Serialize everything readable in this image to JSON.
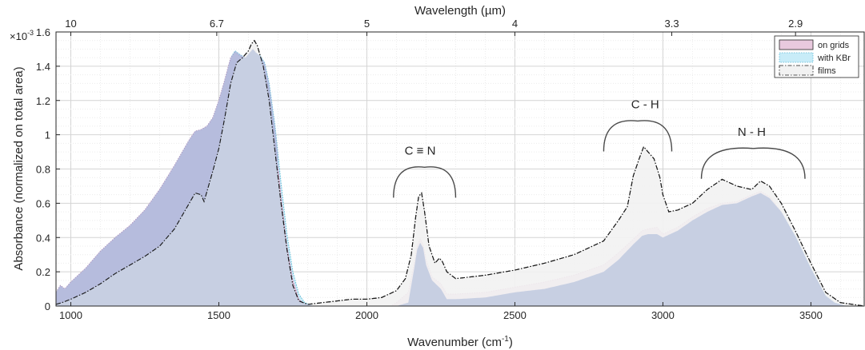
{
  "chart_data": {
    "type": "area",
    "xlabel": "Wavenumber (cm",
    "xlabel_sup": "-1",
    "xlabel_close": ")",
    "ylabel": "Absorbance (normalized on total area)",
    "top_xlabel": "Wavelength (µm)",
    "y_exponent_base": "×10",
    "y_exponent": "-3",
    "xlim": [
      950,
      3680
    ],
    "ylim": [
      0,
      1.6
    ],
    "x_ticks": [
      1000,
      1500,
      2000,
      2500,
      3000,
      3500
    ],
    "y_ticks": [
      0,
      0.2,
      0.4,
      0.6,
      0.8,
      1,
      1.2,
      1.4,
      1.6
    ],
    "y_tick_labels": [
      "0",
      "0.2",
      "0.4",
      "0.6",
      "0.8",
      "1",
      "1.2",
      "1.4",
      "1.6"
    ],
    "top_ticks": [
      {
        "label": "10",
        "wavenumber": 1000
      },
      {
        "label": "6.7",
        "wavenumber": 1493
      },
      {
        "label": "5",
        "wavenumber": 2000
      },
      {
        "label": "4",
        "wavenumber": 2500
      },
      {
        "label": "3.3",
        "wavenumber": 3030
      },
      {
        "label": "2.9",
        "wavenumber": 3448
      }
    ],
    "grid": true,
    "legend_position": "top-right",
    "annotations": [
      {
        "text": "C ≡ N",
        "x": 2180,
        "y": 1.22,
        "arc_from": 2090,
        "arc_to": 2300,
        "arc_top": 0.81
      },
      {
        "text": "C - H",
        "x": 2940,
        "y": 1.43,
        "arc_from": 2800,
        "arc_to": 3030,
        "arc_top": 1.08
      },
      {
        "text": "N - H",
        "x": 3300,
        "y": 1.21,
        "arc_from": 3130,
        "arc_to": 3480,
        "arc_top": 0.92
      }
    ],
    "series": [
      {
        "name": "with KBr",
        "fill": "#c8ecf8",
        "edge": "#5cb8d4",
        "points": [
          [
            950,
            0.08
          ],
          [
            965,
            0.12
          ],
          [
            980,
            0.1
          ],
          [
            1000,
            0.14
          ],
          [
            1050,
            0.22
          ],
          [
            1100,
            0.32
          ],
          [
            1150,
            0.4
          ],
          [
            1200,
            0.47
          ],
          [
            1250,
            0.56
          ],
          [
            1300,
            0.68
          ],
          [
            1350,
            0.82
          ],
          [
            1400,
            0.97
          ],
          [
            1420,
            1.02
          ],
          [
            1440,
            1.03
          ],
          [
            1460,
            1.05
          ],
          [
            1480,
            1.1
          ],
          [
            1500,
            1.2
          ],
          [
            1520,
            1.32
          ],
          [
            1540,
            1.45
          ],
          [
            1555,
            1.49
          ],
          [
            1570,
            1.47
          ],
          [
            1590,
            1.45
          ],
          [
            1605,
            1.48
          ],
          [
            1615,
            1.5
          ],
          [
            1625,
            1.48
          ],
          [
            1640,
            1.46
          ],
          [
            1655,
            1.42
          ],
          [
            1670,
            1.3
          ],
          [
            1690,
            1.05
          ],
          [
            1710,
            0.72
          ],
          [
            1730,
            0.42
          ],
          [
            1750,
            0.2
          ],
          [
            1770,
            0.07
          ],
          [
            1790,
            0.02
          ],
          [
            1820,
            0
          ],
          [
            2100,
            0
          ],
          [
            2140,
            0.02
          ],
          [
            2160,
            0.22
          ],
          [
            2170,
            0.33
          ],
          [
            2180,
            0.37
          ],
          [
            2190,
            0.34
          ],
          [
            2200,
            0.24
          ],
          [
            2220,
            0.15
          ],
          [
            2250,
            0.1
          ],
          [
            2270,
            0.04
          ],
          [
            2300,
            0.04
          ],
          [
            2400,
            0.05
          ],
          [
            2500,
            0.08
          ],
          [
            2600,
            0.1
          ],
          [
            2700,
            0.14
          ],
          [
            2800,
            0.2
          ],
          [
            2850,
            0.27
          ],
          [
            2900,
            0.36
          ],
          [
            2930,
            0.41
          ],
          [
            2950,
            0.42
          ],
          [
            2980,
            0.42
          ],
          [
            3000,
            0.4
          ],
          [
            3050,
            0.44
          ],
          [
            3100,
            0.5
          ],
          [
            3150,
            0.55
          ],
          [
            3200,
            0.59
          ],
          [
            3250,
            0.6
          ],
          [
            3300,
            0.64
          ],
          [
            3330,
            0.66
          ],
          [
            3360,
            0.63
          ],
          [
            3400,
            0.55
          ],
          [
            3450,
            0.4
          ],
          [
            3500,
            0.22
          ],
          [
            3550,
            0.06
          ],
          [
            3580,
            0.02
          ],
          [
            3620,
            0
          ],
          [
            3680,
            0
          ]
        ]
      },
      {
        "name": "on grids",
        "fill": "#e8c9de",
        "edge": "#c27fae",
        "points": [
          [
            950,
            0.08
          ],
          [
            965,
            0.12
          ],
          [
            980,
            0.1
          ],
          [
            1000,
            0.14
          ],
          [
            1050,
            0.22
          ],
          [
            1100,
            0.32
          ],
          [
            1150,
            0.4
          ],
          [
            1200,
            0.47
          ],
          [
            1250,
            0.56
          ],
          [
            1300,
            0.68
          ],
          [
            1350,
            0.82
          ],
          [
            1400,
            0.97
          ],
          [
            1420,
            1.02
          ],
          [
            1440,
            1.03
          ],
          [
            1460,
            1.05
          ],
          [
            1480,
            1.1
          ],
          [
            1500,
            1.2
          ],
          [
            1520,
            1.32
          ],
          [
            1540,
            1.45
          ],
          [
            1555,
            1.48
          ],
          [
            1570,
            1.46
          ],
          [
            1590,
            1.45
          ],
          [
            1605,
            1.48
          ],
          [
            1615,
            1.5
          ],
          [
            1625,
            1.48
          ],
          [
            1640,
            1.45
          ],
          [
            1655,
            1.4
          ],
          [
            1670,
            1.25
          ],
          [
            1690,
            0.98
          ],
          [
            1710,
            0.64
          ],
          [
            1730,
            0.35
          ],
          [
            1750,
            0.15
          ],
          [
            1770,
            0.04
          ],
          [
            1790,
            0.01
          ],
          [
            1810,
            0
          ],
          [
            2080,
            0
          ],
          [
            2100,
            0.02
          ],
          [
            2140,
            0.08
          ],
          [
            2160,
            0.25
          ],
          [
            2170,
            0.35
          ],
          [
            2180,
            0.39
          ],
          [
            2190,
            0.36
          ],
          [
            2200,
            0.27
          ],
          [
            2220,
            0.17
          ],
          [
            2250,
            0.13
          ],
          [
            2270,
            0.07
          ],
          [
            2300,
            0.07
          ],
          [
            2400,
            0.08
          ],
          [
            2500,
            0.11
          ],
          [
            2600,
            0.14
          ],
          [
            2700,
            0.18
          ],
          [
            2800,
            0.24
          ],
          [
            2850,
            0.31
          ],
          [
            2900,
            0.39
          ],
          [
            2930,
            0.44
          ],
          [
            2950,
            0.45
          ],
          [
            2980,
            0.46
          ],
          [
            3000,
            0.42
          ],
          [
            3050,
            0.46
          ],
          [
            3100,
            0.52
          ],
          [
            3150,
            0.57
          ],
          [
            3200,
            0.6
          ],
          [
            3250,
            0.61
          ],
          [
            3300,
            0.65
          ],
          [
            3330,
            0.67
          ],
          [
            3360,
            0.64
          ],
          [
            3400,
            0.55
          ],
          [
            3450,
            0.38
          ],
          [
            3500,
            0.2
          ],
          [
            3550,
            0.05
          ],
          [
            3580,
            0.01
          ],
          [
            3600,
            0
          ],
          [
            3680,
            0
          ]
        ]
      },
      {
        "name": "films",
        "fill": "#f2f2f2",
        "edge": "#1a1a1a",
        "points": [
          [
            950,
            0.01
          ],
          [
            970,
            0.02
          ],
          [
            1000,
            0.04
          ],
          [
            1050,
            0.08
          ],
          [
            1100,
            0.13
          ],
          [
            1150,
            0.19
          ],
          [
            1200,
            0.24
          ],
          [
            1250,
            0.29
          ],
          [
            1300,
            0.35
          ],
          [
            1350,
            0.45
          ],
          [
            1400,
            0.6
          ],
          [
            1420,
            0.66
          ],
          [
            1440,
            0.65
          ],
          [
            1450,
            0.61
          ],
          [
            1460,
            0.67
          ],
          [
            1480,
            0.79
          ],
          [
            1500,
            0.92
          ],
          [
            1520,
            1.1
          ],
          [
            1540,
            1.3
          ],
          [
            1560,
            1.42
          ],
          [
            1580,
            1.45
          ],
          [
            1600,
            1.49
          ],
          [
            1610,
            1.53
          ],
          [
            1620,
            1.55
          ],
          [
            1630,
            1.52
          ],
          [
            1650,
            1.4
          ],
          [
            1670,
            1.2
          ],
          [
            1690,
            0.9
          ],
          [
            1710,
            0.6
          ],
          [
            1730,
            0.33
          ],
          [
            1750,
            0.12
          ],
          [
            1770,
            0.03
          ],
          [
            1800,
            0.01
          ],
          [
            1850,
            0.02
          ],
          [
            1900,
            0.03
          ],
          [
            1950,
            0.04
          ],
          [
            2000,
            0.04
          ],
          [
            2050,
            0.05
          ],
          [
            2100,
            0.09
          ],
          [
            2130,
            0.16
          ],
          [
            2150,
            0.3
          ],
          [
            2165,
            0.52
          ],
          [
            2175,
            0.64
          ],
          [
            2185,
            0.66
          ],
          [
            2195,
            0.55
          ],
          [
            2210,
            0.35
          ],
          [
            2230,
            0.25
          ],
          [
            2245,
            0.28
          ],
          [
            2255,
            0.26
          ],
          [
            2270,
            0.2
          ],
          [
            2300,
            0.16
          ],
          [
            2400,
            0.18
          ],
          [
            2500,
            0.21
          ],
          [
            2600,
            0.25
          ],
          [
            2700,
            0.3
          ],
          [
            2800,
            0.38
          ],
          [
            2850,
            0.5
          ],
          [
            2880,
            0.58
          ],
          [
            2900,
            0.76
          ],
          [
            2920,
            0.86
          ],
          [
            2935,
            0.93
          ],
          [
            2950,
            0.9
          ],
          [
            2970,
            0.86
          ],
          [
            2990,
            0.75
          ],
          [
            3000,
            0.65
          ],
          [
            3020,
            0.55
          ],
          [
            3050,
            0.56
          ],
          [
            3100,
            0.6
          ],
          [
            3150,
            0.68
          ],
          [
            3200,
            0.74
          ],
          [
            3250,
            0.7
          ],
          [
            3300,
            0.68
          ],
          [
            3330,
            0.73
          ],
          [
            3360,
            0.7
          ],
          [
            3400,
            0.6
          ],
          [
            3450,
            0.43
          ],
          [
            3500,
            0.25
          ],
          [
            3550,
            0.08
          ],
          [
            3600,
            0.02
          ],
          [
            3680,
            0
          ]
        ]
      }
    ],
    "legend": [
      "on grids",
      "with KBr",
      "films"
    ]
  }
}
